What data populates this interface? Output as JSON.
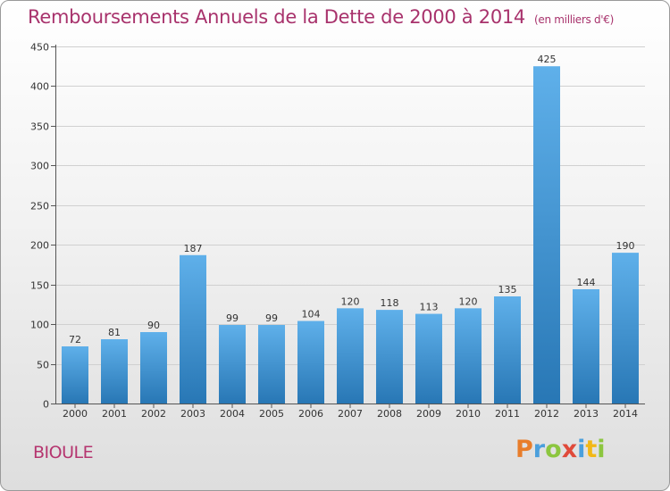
{
  "title": "Remboursements Annuels de la Dette de 2000 à 2014",
  "unit_note": "(en milliers d'€)",
  "commune": "BIOULE",
  "logo": {
    "p": "P",
    "r": "r",
    "o": "o",
    "x": "x",
    "i1": "i",
    "t": "t",
    "i2": "i"
  },
  "colors": {
    "bar_light": "#5fb0ea",
    "bar_dark": "#2877b5",
    "title": "#a8326c",
    "grid": "#d0d0d0"
  },
  "chart_data": {
    "type": "bar",
    "title": "Remboursements Annuels de la Dette de 2000 à 2014",
    "xlabel": "",
    "ylabel": "",
    "ylim": [
      0,
      450
    ],
    "yticks": [
      0,
      50,
      100,
      150,
      200,
      250,
      300,
      350,
      400,
      450
    ],
    "grid": true,
    "categories": [
      "2000",
      "2001",
      "2002",
      "2003",
      "2004",
      "2005",
      "2006",
      "2007",
      "2008",
      "2009",
      "2010",
      "2011",
      "2012",
      "2013",
      "2014"
    ],
    "values": [
      72,
      81,
      90,
      187,
      99,
      99,
      104,
      120,
      118,
      113,
      120,
      135,
      425,
      144,
      190
    ]
  }
}
